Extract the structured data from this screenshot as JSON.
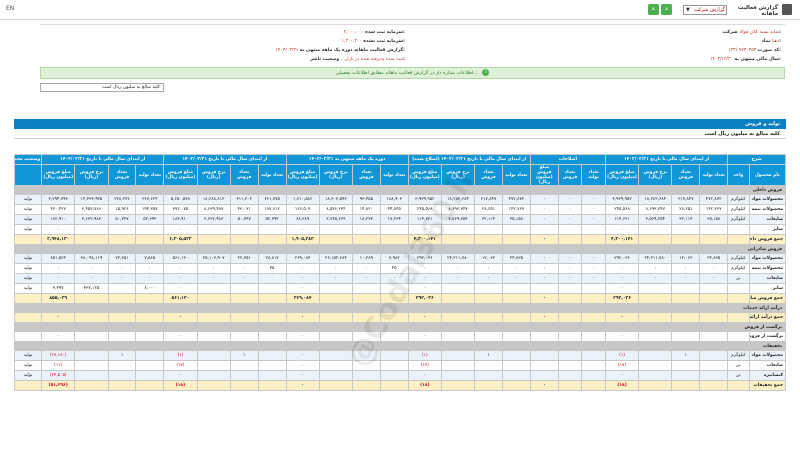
{
  "topbar": {
    "lang": "EN",
    "report_title": "گزارش فعالیت ماهانه",
    "report_type_value": "گزارش شرکت",
    "prev": "‹",
    "next": "›"
  },
  "info": {
    "company_label": "شرکت:",
    "company_value": "نمایه بسته کلان فولاد",
    "symbol_label": "نماد:",
    "symbol_value": "ذهبا",
    "code_label": "کد صورت:",
    "code_value": "(۳۳) ۷۷۳۰۳۵۳",
    "fiscal_label": "سال مالی منتهی به:",
    "fiscal_value": "۱۴۰۳/۱۲/۳۰",
    "capital_label": "سرمایه ثبت شده:",
    "capital_value": "۲,۰۰۰,۰۰۰",
    "unreg_capital_label": "سرمایه ثبت نشده:",
    "unreg_capital_value": "۱,۳۰۰,۳۰۰",
    "period_label": "گزارش فعالیت ماهانه دوره یک ماهه منتهی به:",
    "period_value": "۱۴۰۳/۰۳/۳۱",
    "status_label": "وضعیت ناشر:",
    "status_value": "ثبت شده پذیرفته شده در بازار..."
  },
  "notice": "اطلاعات ستاره دار در گزارش فعالیت ماهانه مطابق اطلاعات تفصیلی...",
  "note_box": "کلیه مبالغ به میلیون ریال است",
  "section_title": "تولید و فروش",
  "section_sub": "کلیه مبالغ به میلیون ریال است",
  "table": {
    "groups": [
      "شرح",
      "از ابتدای سال مالی تا تاریخ ۱۴۰۳/۰۲/۳۱",
      "اصلاحات",
      "از ابتدای سال مالی تا تاریخ ۱۴۰۳/۰۲/۳۱ (اصلاح شده)",
      "دوره یک ماهه منتهی به ۱۴۰۳/۰۳/۳۱",
      "از ابتدای سال مالی تا تاریخ ۱۴۰۳/۰۳/۳۱",
      "از ابتدای سال مالی تا تاریخ ۱۴۰۲/۰۳/۳۱",
      "وضعیت محصول-واحد"
    ],
    "subheads": [
      "نام محصول",
      "واحد",
      "تعداد تولید",
      "تعداد فروش",
      "نرخ فروش (ریال)",
      "مبلغ فروش (میلیون ریال)",
      "تعداد تولید",
      "تعداد فروش",
      "مبلغ فروش (میلیون ریال)",
      "تعداد تولید",
      "تعداد فروش",
      "نرخ فروش (ریال)",
      "مبلغ فروش (میلیون ریال)",
      "تعداد تولید",
      "تعداد فروش",
      "نرخ فروش (ریال)",
      "مبلغ فروش (میلیون ریال)",
      "تعداد تولید",
      "تعداد فروش",
      "نرخ فروش (ریال)",
      "مبلغ فروش (میلیون ریال)",
      "تعداد تولید",
      "تعداد فروش",
      "نرخ فروش (ریال)",
      "مبلغ فروش (میلیون ریال)",
      ""
    ],
    "rows": [
      {
        "type": "group",
        "cells": [
          "فروش داخلی"
        ]
      },
      {
        "type": "bl",
        "cells": [
          "محصولات مواد اولیه",
          "کیلوگرم",
          "۴۷۲,۸۷۲",
          "۲۱۷,۸۴۷",
          "۱۸,۲۸۲,۶۸۴",
          "۳,۹۳۹,۹۵۲",
          "۰",
          "۰",
          "۰",
          "۴۷۲,۸۷۲",
          "۲۱۷,۸۴۷",
          "۱۸,۲۸۲,۶۸۴",
          "۳,۹۳۹,۹۵۲",
          "۱۸۸,۹۰۳",
          "۹۳,۴۵۵",
          "۱۸,۳۰۳,۵۹۳",
          "۱,۷۱۰,۵۸۶",
          "۶۶۱,۷۷۵",
          "۳۱۱,۳۰۲",
          "۱۸,۲۸۸,۸۱۲",
          "۵,۶۵۰,۵۳۸",
          "۳۶۷,۶۲۴",
          "۲۲۸,۲۷۲",
          "۱۴,۴۳۳,۹۳۵",
          "۳,۲۹۴,۷۹۳",
          "تولید"
        ]
      },
      {
        "type": "wt",
        "cells": [
          "محصولات نیمه ساخته",
          "کیلوگرم",
          "۱۴۲,۷۶۷",
          "۲۸,۲۵۱",
          "۸,۶۹۳,۳۴۷",
          "۲۴۵,۵۶۸",
          "۰",
          "۰",
          "۰",
          "۱۴۲,۷۶۷",
          "۲۸,۲۵۱",
          "۸,۶۹۳,۳۴۷",
          "۲۴۵,۵۶۸",
          "۴۴,۸۴۵",
          "۱۴,۸۲۰",
          "۸,۵۳۶,۲۳۴",
          "۱۲۶,۵۰۷",
          "۱۸۷,۶۱۲",
          "۴۳,۰۷۱",
          "۸,۶۳۹,۴۸۷",
          "۳۷۲,۰۷۵",
          "۱۹۴,۳۵۷",
          "۱۵,۹۲۶",
          "۶,۴۵۳,۷۸۶",
          "۴۷۰,۴۲۷",
          "تولید"
        ]
      },
      {
        "type": "bl",
        "cells": [
          "ضایعات",
          "کیلوگرم",
          "۳۵,۱۵۸",
          "۳۲,۱۱۴",
          "۳,۵۶۹,۳۵۴",
          "۱۱۴,۶۲۱",
          "۰",
          "۰",
          "۰",
          "۳۵,۱۵۸",
          "۳۲,۱۱۴",
          "۳,۵۶۹,۳۵۴",
          "۱۱۴,۶۲۱",
          "۱۷,۲۳۴",
          "۱۸,۲۳۳",
          "۳,۷۴۵,۳۶۴",
          "۶۸,۲۸۹",
          "۵۲,۳۹۲",
          "۵۰,۳۴۷",
          "۳,۶۳۲,۹۸۳",
          "۱۸۲,۹۱۰",
          "۵۲,۳۹۲",
          "۵۰,۳۴۷",
          "۳,۶۳۲,۹۸۳",
          "۱۸۲,۹۱۰",
          "تولید"
        ]
      },
      {
        "type": "wt",
        "cells": [
          "سایر",
          "",
          "",
          "",
          "",
          "۰",
          "",
          "",
          "",
          "",
          "",
          "",
          "۰",
          "",
          "",
          "",
          "۰",
          "",
          "",
          "",
          "۰",
          "",
          "",
          "",
          "۰",
          "تولید"
        ]
      },
      {
        "type": "tot",
        "cells": [
          "جمع فروش داخلی",
          "",
          "",
          "",
          "",
          "۴,۳۰۰,۱۴۱",
          "",
          "",
          "۰",
          "",
          "",
          "",
          "۴,۳۰۰,۱۴۱",
          "",
          "",
          "",
          "۱,۹۰۵,۳۸۲",
          "",
          "",
          "",
          "۶,۲۰۵,۵۲۳",
          "",
          "",
          "",
          "۳,۹۴۸,۱۳۰",
          ""
        ]
      },
      {
        "type": "group",
        "cells": [
          "فروش صادراتی"
        ]
      },
      {
        "type": "bl",
        "cells": [
          "محصولات مواد اولیه",
          "کیلوگرم",
          "۲۴,۸۳۵",
          "۱۲,۰۶۲",
          "۲۴,۲۱۱,۷۸۰",
          "۲۹۲,۰۳۶",
          "۰",
          "۰",
          "۰",
          "۲۴,۸۳۵",
          "۱۲,۰۶۲",
          "۲۴,۲۱۱,۷۸۰",
          "۲۹۲,۰۳۶",
          "۳,۹۸۲",
          "۱۰,۲۸۹",
          "۲۶,۱۵۲,۶۸۴",
          "۲۶۹,۰۸۴",
          "۲۸,۸۱۷",
          "۲۲,۳۵۱",
          "۲۵,۱۰۳,۹۰۷",
          "۵۶۱,۱۲۰",
          "۷,۵۶۵",
          "۲۲,۳۵۱",
          "۳۸,۰۹۸,۱۱۹",
          "۸۵۱,۵۳۲",
          "تولید"
        ]
      },
      {
        "type": "wt",
        "cells": [
          "محصولات نیمه ساخته",
          "کیلوگرم",
          "۰",
          "۰",
          "۰",
          "۰",
          "۰",
          "۰",
          "۰",
          "۰",
          "۰",
          "۰",
          "۰",
          "۴۵",
          "۰",
          "۰",
          "۰",
          "۴۵",
          "۰",
          "۰",
          "۰",
          "۰",
          "۰",
          "۰",
          "۰",
          "تولید"
        ]
      },
      {
        "type": "bl",
        "cells": [
          "ضایعات",
          "تن",
          "۰",
          "۰",
          "۰",
          "۰",
          "۰",
          "۰",
          "۰",
          "۰",
          "۰",
          "۰",
          "۰",
          "۰",
          "۰",
          "۰",
          "۰",
          "۰",
          "۰",
          "۰",
          "۰",
          "۰",
          "۰",
          "۰",
          "۰",
          "تولید"
        ]
      },
      {
        "type": "wt",
        "cells": [
          "سایر",
          "",
          "",
          "",
          "",
          "۰",
          "",
          "",
          "",
          "",
          "",
          "",
          "۰",
          "",
          "",
          "",
          "۰",
          "",
          "",
          "",
          "۰",
          "۸,۰۰۰",
          "",
          "۴۳۷,۱۲۵",
          "۳,۴۹۷",
          "تولید"
        ]
      },
      {
        "type": "tot",
        "cells": [
          "جمع فروش صادراتی",
          "",
          "",
          "",
          "",
          "۲۹۲,۰۳۶",
          "",
          "",
          "۰",
          "",
          "",
          "",
          "۲۹۲,۰۳۶",
          "",
          "",
          "",
          "۲۶۹,۰۸۴",
          "",
          "",
          "",
          "۵۶۱,۱۲۰",
          "",
          "",
          "",
          "۸۵۵,۰۲۹",
          ""
        ]
      },
      {
        "type": "group",
        "cells": [
          "درآمد ارائه خدمات"
        ]
      },
      {
        "type": "tot",
        "cells": [
          "جمع درآمد ارائه خدمات",
          "",
          "",
          "",
          "",
          "۰",
          "",
          "",
          "۰",
          "",
          "",
          "",
          "۰",
          "",
          "",
          "",
          "۰",
          "",
          "",
          "",
          "۰",
          "",
          "",
          "",
          "۰",
          ""
        ]
      },
      {
        "type": "group",
        "cells": [
          "برگشت از فروش"
        ]
      },
      {
        "type": "wt",
        "cells": [
          "برگشت از فروش",
          "",
          "",
          "",
          "",
          "۰",
          "",
          "",
          "",
          "",
          "",
          "",
          "۰",
          "",
          "",
          "",
          "۰",
          "",
          "",
          "",
          "۰",
          "",
          "",
          "",
          "۰",
          ""
        ]
      },
      {
        "type": "group",
        "cells": [
          "تخفیفات"
        ]
      },
      {
        "type": "bl",
        "cells": [
          "محصولات مواد",
          "کیلوگرم",
          "",
          "۱",
          "",
          "(۱)",
          "",
          "",
          "",
          "",
          "۱",
          "",
          "(۱)",
          "",
          "",
          "",
          "۰",
          "",
          "۱",
          "",
          "(۱)",
          "",
          "۱",
          "",
          "(۲۷,۱۸۰)",
          "تولید"
        ]
      },
      {
        "type": "wt",
        "cells": [
          "ضایعات",
          "تن",
          "",
          "",
          "",
          "(۱۷)",
          "",
          "",
          "",
          "",
          "",
          "",
          "(۱۷)",
          "",
          "",
          "",
          "۰",
          "",
          "",
          "",
          "(۱۷)",
          "",
          "",
          "",
          "(۱۱)",
          "تولید"
        ]
      },
      {
        "type": "bl",
        "cells": [
          "کنسانتره",
          "تن",
          "",
          "",
          "",
          "۰",
          "",
          "",
          "",
          "",
          "",
          "",
          "۰",
          "",
          "",
          "",
          "۰",
          "",
          "",
          "",
          "۰",
          "",
          "",
          "",
          "(۲۴,۵۰۵)",
          "تولید"
        ]
      },
      {
        "type": "tot",
        "cells": [
          "جمع تخفیفات",
          "",
          "",
          "",
          "",
          "(۱۸)",
          "",
          "",
          "۰",
          "",
          "",
          "",
          "(۱۸)",
          "",
          "",
          "",
          "۰",
          "",
          "",
          "",
          "(۱۸)",
          "",
          "",
          "",
          "(۵۱,۶۹۶)",
          ""
        ]
      }
    ]
  },
  "watermark": "@Codal360.ir"
}
